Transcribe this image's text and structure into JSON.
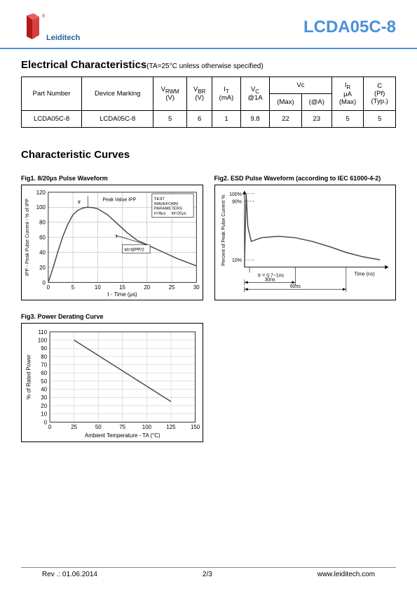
{
  "header": {
    "brand": "Leiditech",
    "logo_color": "#b01818",
    "logo_text_color": "#2a5fa0",
    "part_number": "LCDA05C-8",
    "title_color": "#4a90d9"
  },
  "electrical": {
    "heading": "Electrical Characteristics",
    "subtitle": "(TA=25°C unless otherwise specified)",
    "columns": {
      "c1": "Part Number",
      "c2": "Device Marking",
      "c3": "V",
      "c3_sub": "RWM",
      "c3_unit": "(V)",
      "c4": "V",
      "c4_sub": "BR",
      "c4_unit": "(V)",
      "c5": "I",
      "c5_sub": "T",
      "c5_unit": "(mA)",
      "c6": "V",
      "c6_sub": "C",
      "c6_unit": "@1A",
      "c7": "Vc",
      "c7a": "(Max)",
      "c7b": "(@A)",
      "c8": "I",
      "c8_sub": "R",
      "c8_unit_1": "μA",
      "c8_unit_2": "(Max)",
      "c9": "C",
      "c9_unit_1": "(Pf)",
      "c9_unit_2": "(Typ.)"
    },
    "row": {
      "part": "LCDA05C-8",
      "marking": "LCDA05C-8",
      "vrwm": "5",
      "vbr": "6",
      "it": "1",
      "vc1a": "9.8",
      "vcmax": "22",
      "vca": "23",
      "ir": "5",
      "c": "5"
    }
  },
  "curves": {
    "heading": "Characteristic Curves",
    "fig1": {
      "label": "Fig1.   8/20μs Pulse Waveform",
      "type": "line",
      "xlim": [
        0,
        30
      ],
      "ylim": [
        0,
        120
      ],
      "xticks": [
        0,
        5,
        10,
        15,
        20,
        25,
        30
      ],
      "yticks": [
        0,
        20,
        40,
        60,
        80,
        100,
        120
      ],
      "xlabel": "t - Time (μs)",
      "ylabel": "IPP - Peak Pulse Current - % of IPP",
      "grid_color": "#9aa9c9",
      "line_color": "#4a4a4a",
      "line_width": 1.5,
      "background_color": "#ffffff",
      "data": [
        [
          0,
          0
        ],
        [
          1,
          20
        ],
        [
          2,
          42
        ],
        [
          3,
          62
        ],
        [
          4,
          78
        ],
        [
          5,
          90
        ],
        [
          6,
          96
        ],
        [
          7,
          99
        ],
        [
          8,
          100
        ],
        [
          9,
          99.5
        ],
        [
          10,
          98
        ],
        [
          12,
          90
        ],
        [
          14,
          78
        ],
        [
          16,
          66
        ],
        [
          18,
          56
        ],
        [
          20,
          50
        ],
        [
          22,
          44
        ],
        [
          24,
          38
        ],
        [
          26,
          32
        ],
        [
          28,
          27
        ],
        [
          30,
          22
        ]
      ],
      "annotations": {
        "tr": "tr",
        "peak": "Peak Value IPP",
        "halfbox": "td=t|IPP/2",
        "param_title": "TEST WAVEFORM PARAMETERS",
        "param1": "tr=8μs",
        "param2": "td=20μs"
      }
    },
    "fig2": {
      "label": "Fig2. ESD Pulse Waveform (according to IEC 61000-4-2)",
      "type": "line",
      "ylabel": "Percent of Peak Pulse Current %",
      "xlabel": "Time (ns)",
      "grid_none": true,
      "line_color": "#4a4a4a",
      "line_width": 1.5,
      "yticks_labels": [
        "100%",
        "90%",
        "10%"
      ],
      "data": [
        [
          0,
          0
        ],
        [
          1,
          100
        ],
        [
          2,
          55
        ],
        [
          4,
          35
        ],
        [
          10,
          40
        ],
        [
          20,
          42
        ],
        [
          30,
          40
        ],
        [
          40,
          35
        ],
        [
          50,
          28
        ],
        [
          60,
          20
        ],
        [
          70,
          14
        ],
        [
          80,
          10
        ]
      ],
      "annotations": {
        "tr": "tr = 0.7~1ns",
        "t30": "30ns",
        "t60": "60ns"
      }
    },
    "fig3": {
      "label": "Fig3.   Power Derating Curve",
      "type": "line",
      "xlim": [
        0,
        150
      ],
      "ylim": [
        0,
        110
      ],
      "xticks": [
        0,
        25,
        50,
        75,
        100,
        125,
        150
      ],
      "yticks": [
        0,
        10,
        20,
        30,
        40,
        50,
        60,
        70,
        80,
        90,
        100,
        110
      ],
      "xlabel": "Ambient Temperature - TA (°C)",
      "ylabel": "% of Rated Power",
      "grid_color": "#bcc6da",
      "line_color": "#4a4a4a",
      "line_width": 1.5,
      "data": [
        [
          25,
          100
        ],
        [
          125,
          25
        ]
      ]
    }
  },
  "footer": {
    "rev": "Rev .:  01.06.2014",
    "page": "2/3",
    "url": "www.leiditech.com"
  }
}
